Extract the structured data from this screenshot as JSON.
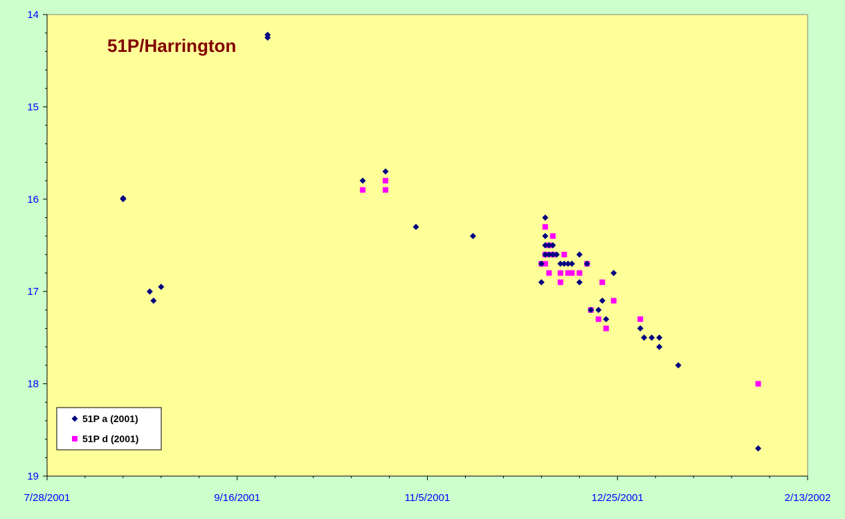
{
  "chart_data": {
    "type": "scatter",
    "title": "51P/Harrington",
    "xlabel": "",
    "ylabel": "",
    "y_inverted": true,
    "ylim": [
      14,
      19
    ],
    "y_ticks": [
      "14",
      "15",
      "16",
      "17",
      "18",
      "19"
    ],
    "xlim": [
      "2001-07-28",
      "2002-02-13"
    ],
    "x_ticks": [
      "7/28/2001",
      "9/16/2001",
      "11/5/2001",
      "12/25/2001",
      "2/13/2002"
    ],
    "grid": false,
    "legend_position": "bottom-left",
    "series": [
      {
        "name": "51P a (2001)",
        "marker": "diamond",
        "color": "#000080",
        "points": [
          [
            "2001-08-17",
            16.0
          ],
          [
            "2001-08-17",
            15.99
          ],
          [
            "2001-08-24",
            17.0
          ],
          [
            "2001-08-25",
            17.1
          ],
          [
            "2001-08-27",
            16.95
          ],
          [
            "2001-09-24",
            14.22
          ],
          [
            "2001-09-24",
            14.25
          ],
          [
            "2001-10-19",
            15.8
          ],
          [
            "2001-10-25",
            15.7
          ],
          [
            "2001-11-02",
            16.3
          ],
          [
            "2001-11-17",
            16.4
          ],
          [
            "2001-12-05",
            16.9
          ],
          [
            "2001-12-05",
            16.7
          ],
          [
            "2001-12-06",
            16.2
          ],
          [
            "2001-12-06",
            16.4
          ],
          [
            "2001-12-06",
            16.5
          ],
          [
            "2001-12-06",
            16.6
          ],
          [
            "2001-12-07",
            16.5
          ],
          [
            "2001-12-07",
            16.6
          ],
          [
            "2001-12-08",
            16.6
          ],
          [
            "2001-12-08",
            16.5
          ],
          [
            "2001-12-09",
            16.6
          ],
          [
            "2001-12-10",
            16.7
          ],
          [
            "2001-12-11",
            16.7
          ],
          [
            "2001-12-12",
            16.7
          ],
          [
            "2001-12-13",
            16.7
          ],
          [
            "2001-12-15",
            16.6
          ],
          [
            "2001-12-15",
            16.9
          ],
          [
            "2001-12-17",
            16.7
          ],
          [
            "2001-12-18",
            17.2
          ],
          [
            "2001-12-20",
            17.2
          ],
          [
            "2001-12-21",
            17.1
          ],
          [
            "2001-12-22",
            17.3
          ],
          [
            "2001-12-24",
            16.8
          ],
          [
            "2001-12-31",
            17.4
          ],
          [
            "2002-01-01",
            17.5
          ],
          [
            "2002-01-03",
            17.5
          ],
          [
            "2002-01-05",
            17.5
          ],
          [
            "2002-01-05",
            17.6
          ],
          [
            "2002-01-10",
            17.8
          ],
          [
            "2002-01-31",
            18.7
          ]
        ]
      },
      {
        "name": "51P d (2001)",
        "marker": "square",
        "color": "#ff00ff",
        "points": [
          [
            "2001-10-19",
            15.9
          ],
          [
            "2001-10-25",
            15.8
          ],
          [
            "2001-10-25",
            15.9
          ],
          [
            "2001-12-05",
            16.7
          ],
          [
            "2001-12-06",
            16.3
          ],
          [
            "2001-12-06",
            16.6
          ],
          [
            "2001-12-06",
            16.7
          ],
          [
            "2001-12-07",
            16.5
          ],
          [
            "2001-12-07",
            16.8
          ],
          [
            "2001-12-08",
            16.4
          ],
          [
            "2001-12-08",
            16.6
          ],
          [
            "2001-12-10",
            16.8
          ],
          [
            "2001-12-10",
            16.9
          ],
          [
            "2001-12-11",
            16.6
          ],
          [
            "2001-12-12",
            16.8
          ],
          [
            "2001-12-13",
            16.8
          ],
          [
            "2001-12-15",
            16.8
          ],
          [
            "2001-12-17",
            16.7
          ],
          [
            "2001-12-18",
            17.2
          ],
          [
            "2001-12-20",
            17.3
          ],
          [
            "2001-12-21",
            16.9
          ],
          [
            "2001-12-22",
            17.4
          ],
          [
            "2001-12-24",
            17.1
          ],
          [
            "2001-12-31",
            17.3
          ],
          [
            "2002-01-31",
            18.0
          ]
        ]
      }
    ]
  },
  "colors": {
    "page_background": "#ccffcc",
    "plot_background": "#ffff99",
    "tick_labels": "#0000ff",
    "title": "#800000"
  }
}
